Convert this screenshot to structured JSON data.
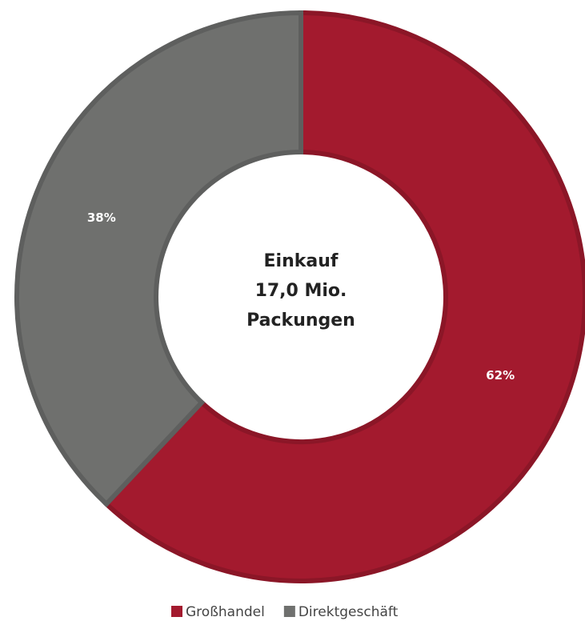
{
  "chart_data": {
    "type": "donut",
    "categories": [
      "Großhandel",
      "Direktgeschäft"
    ],
    "values": [
      62,
      38
    ],
    "value_labels": [
      "62%",
      "38%"
    ],
    "colors": [
      "#a31a2e",
      "#6f706e"
    ],
    "center_text": [
      "Einkauf",
      "17,0 Mio.",
      "Packungen"
    ],
    "legend": "bottom"
  }
}
